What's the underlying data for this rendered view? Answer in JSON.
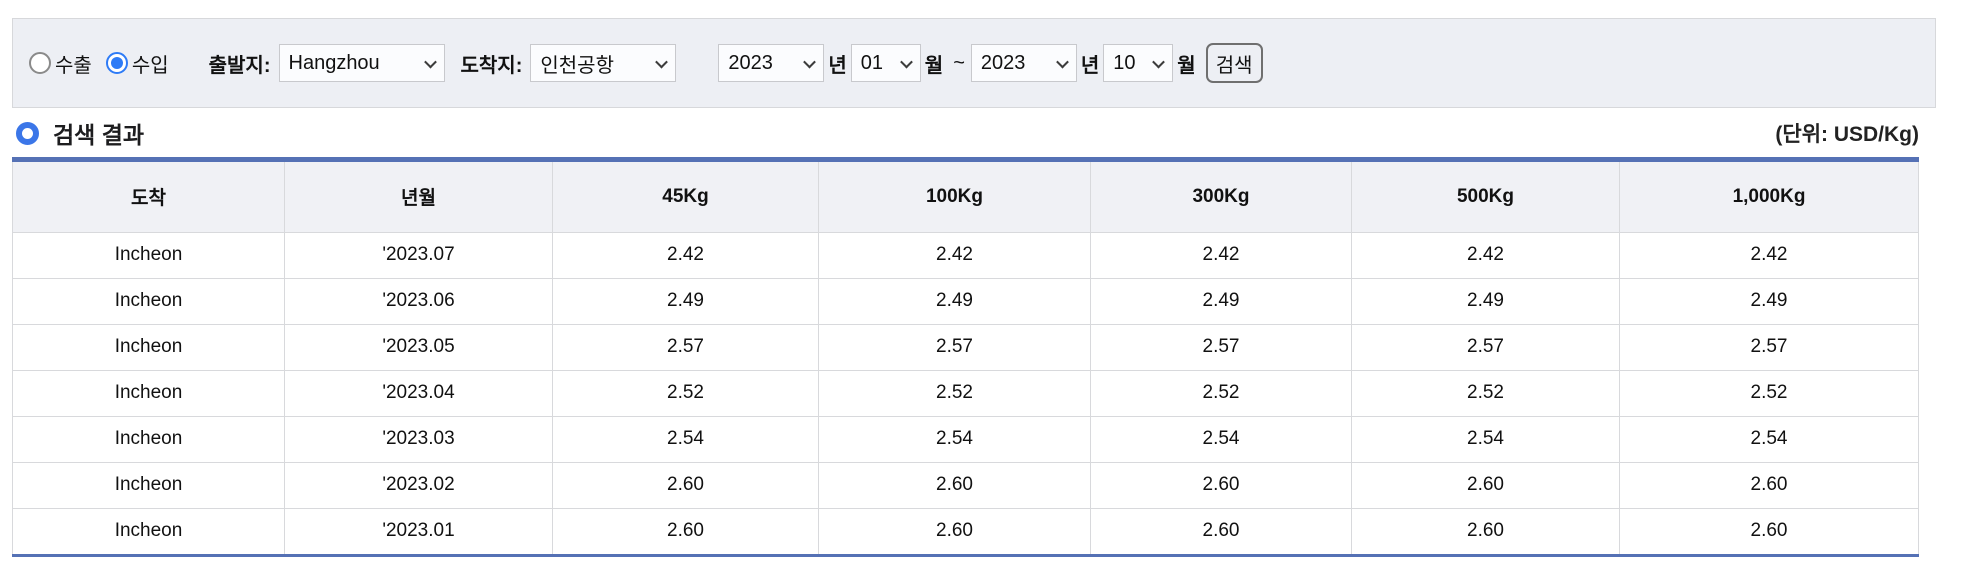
{
  "search_form": {
    "radios": [
      {
        "label": "수출",
        "checked": false
      },
      {
        "label": "수입",
        "checked": true
      }
    ],
    "origin": {
      "label": "출발지:",
      "value": "Hangzhou"
    },
    "destination": {
      "label": "도착지:",
      "value": "인천공항"
    },
    "period": {
      "start_year": "2023",
      "start_month": "01",
      "end_year": "2023",
      "end_month": "10",
      "year_suffix": "년",
      "month_suffix": "월",
      "separator": "~"
    },
    "search_button_label": "검색"
  },
  "results": {
    "title": "검색 결과",
    "unit_note": "(단위: USD/Kg)",
    "table": {
      "columns": [
        "도착",
        "년월",
        "45Kg",
        "100Kg",
        "300Kg",
        "500Kg",
        "1,000Kg"
      ],
      "rows": [
        [
          "Incheon",
          "'2023.07",
          "2.42",
          "2.42",
          "2.42",
          "2.42",
          "2.42"
        ],
        [
          "Incheon",
          "'2023.06",
          "2.49",
          "2.49",
          "2.49",
          "2.49",
          "2.49"
        ],
        [
          "Incheon",
          "'2023.05",
          "2.57",
          "2.57",
          "2.57",
          "2.57",
          "2.57"
        ],
        [
          "Incheon",
          "'2023.04",
          "2.52",
          "2.52",
          "2.52",
          "2.52",
          "2.52"
        ],
        [
          "Incheon",
          "'2023.03",
          "2.54",
          "2.54",
          "2.54",
          "2.54",
          "2.54"
        ],
        [
          "Incheon",
          "'2023.02",
          "2.60",
          "2.60",
          "2.60",
          "2.60",
          "2.60"
        ],
        [
          "Incheon",
          "'2023.01",
          "2.60",
          "2.60",
          "2.60",
          "2.60",
          "2.60"
        ]
      ]
    }
  },
  "colors": {
    "table_border_blue": "#5571b5",
    "radio_blue": "#2e7bf6",
    "icon_ring_blue": "#3b76e8",
    "form_bar_bg": "#edeff4",
    "header_row_bg": "#f0f1f5",
    "grid_line": "#d8d9dc"
  }
}
